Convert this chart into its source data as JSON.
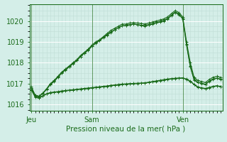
{
  "background_color": "#d4eee8",
  "grid_color_major": "#ffffff",
  "grid_color_minor": "#c0ddd5",
  "line_color": "#1a6b1a",
  "tick_color": "#1a6b1a",
  "label_color": "#1a6b1a",
  "xlabel": "Pression niveau de la mer( hPa )",
  "ylim": [
    1015.7,
    1020.8
  ],
  "yticks": [
    1016,
    1017,
    1018,
    1019,
    1020
  ],
  "xtick_labels": [
    "Jeu",
    "Sam",
    "Ven"
  ],
  "xtick_positions": [
    0,
    16,
    40
  ],
  "num_points": 51,
  "series_up": [
    [
      1016.8,
      1016.45,
      1016.4,
      1016.55,
      1016.75,
      1017.0,
      1017.15,
      1017.35,
      1017.55,
      1017.7,
      1017.85,
      1018.0,
      1018.15,
      1018.35,
      1018.5,
      1018.65,
      1018.85,
      1019.0,
      1019.1,
      1019.25,
      1019.4,
      1019.55,
      1019.65,
      1019.75,
      1019.85,
      1019.85,
      1019.9,
      1019.92,
      1019.9,
      1019.88,
      1019.85,
      1019.9,
      1019.95,
      1020.0,
      1020.05,
      1020.1,
      1020.2,
      1020.35,
      1020.5,
      1020.4,
      1020.2,
      1019.0,
      1018.0,
      1017.3,
      1017.15,
      1017.1,
      1017.05,
      1017.2,
      1017.3,
      1017.35,
      1017.3
    ],
    [
      1016.8,
      1016.42,
      1016.38,
      1016.52,
      1016.72,
      1016.95,
      1017.1,
      1017.3,
      1017.5,
      1017.65,
      1017.8,
      1017.95,
      1018.1,
      1018.3,
      1018.45,
      1018.6,
      1018.78,
      1018.93,
      1019.05,
      1019.2,
      1019.32,
      1019.45,
      1019.57,
      1019.68,
      1019.77,
      1019.78,
      1019.82,
      1019.85,
      1019.83,
      1019.8,
      1019.78,
      1019.83,
      1019.88,
      1019.93,
      1019.98,
      1020.03,
      1020.13,
      1020.28,
      1020.43,
      1020.33,
      1020.13,
      1018.88,
      1017.83,
      1017.2,
      1017.07,
      1017.02,
      1016.97,
      1017.12,
      1017.22,
      1017.27,
      1017.22
    ],
    [
      1016.85,
      1016.43,
      1016.39,
      1016.53,
      1016.73,
      1016.97,
      1017.12,
      1017.32,
      1017.52,
      1017.67,
      1017.82,
      1017.97,
      1018.12,
      1018.3,
      1018.47,
      1018.62,
      1018.8,
      1018.95,
      1019.07,
      1019.22,
      1019.35,
      1019.48,
      1019.58,
      1019.68,
      1019.77,
      1019.78,
      1019.82,
      1019.85,
      1019.82,
      1019.78,
      1019.75,
      1019.8,
      1019.85,
      1019.9,
      1019.95,
      1020.0,
      1020.1,
      1020.25,
      1020.4,
      1020.3,
      1020.1,
      1018.85,
      1017.8,
      1017.17,
      1017.05,
      1017.0,
      1016.95,
      1017.1,
      1017.2,
      1017.25,
      1017.2
    ]
  ],
  "series_flat": [
    [
      1016.7,
      1016.35,
      1016.3,
      1016.4,
      1016.5,
      1016.55,
      1016.58,
      1016.6,
      1016.63,
      1016.65,
      1016.67,
      1016.69,
      1016.71,
      1016.73,
      1016.75,
      1016.77,
      1016.79,
      1016.81,
      1016.83,
      1016.85,
      1016.87,
      1016.9,
      1016.92,
      1016.94,
      1016.96,
      1016.97,
      1016.98,
      1016.99,
      1017.0,
      1017.01,
      1017.02,
      1017.05,
      1017.08,
      1017.11,
      1017.14,
      1017.17,
      1017.2,
      1017.22,
      1017.24,
      1017.25,
      1017.26,
      1017.2,
      1017.1,
      1016.95,
      1016.82,
      1016.78,
      1016.75,
      1016.8,
      1016.85,
      1016.88,
      1016.85
    ],
    [
      1016.72,
      1016.37,
      1016.32,
      1016.42,
      1016.52,
      1016.57,
      1016.6,
      1016.62,
      1016.65,
      1016.67,
      1016.69,
      1016.71,
      1016.73,
      1016.75,
      1016.77,
      1016.79,
      1016.81,
      1016.83,
      1016.85,
      1016.87,
      1016.89,
      1016.92,
      1016.94,
      1016.96,
      1016.98,
      1016.99,
      1017.0,
      1017.01,
      1017.02,
      1017.03,
      1017.04,
      1017.07,
      1017.1,
      1017.13,
      1017.16,
      1017.19,
      1017.22,
      1017.24,
      1017.26,
      1017.27,
      1017.28,
      1017.22,
      1017.12,
      1016.97,
      1016.84,
      1016.8,
      1016.77,
      1016.82,
      1016.87,
      1016.9,
      1016.87
    ]
  ],
  "marker_style": "+",
  "marker_size": 2.5,
  "line_width": 0.8,
  "figsize": [
    3.2,
    2.0
  ],
  "dpi": 100
}
